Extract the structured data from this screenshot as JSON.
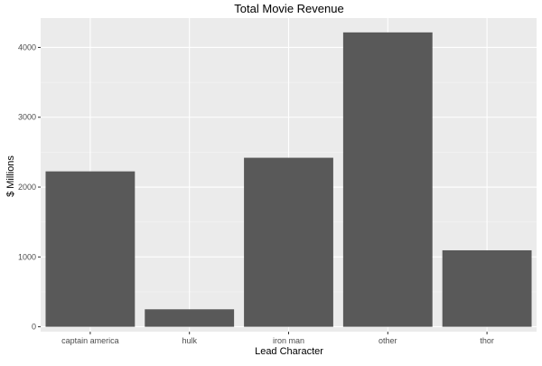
{
  "chart_data": {
    "type": "bar",
    "title": "Total Movie Revenue",
    "xlabel": "Lead Character",
    "ylabel": "$ Millions",
    "categories": [
      "captain america",
      "hulk",
      "iron man",
      "other",
      "thor"
    ],
    "values": [
      2225,
      250,
      2420,
      4215,
      1095
    ],
    "ylim": [
      -70,
      4420
    ],
    "yticks": [
      0,
      1000,
      2000,
      3000,
      4000
    ],
    "ytick_labels": [
      "0",
      "1000",
      "2000",
      "3000",
      "4000"
    ],
    "grid": true,
    "legend": "none",
    "colors": {
      "panel_background": "#ebebeb",
      "grid_major": "#ffffff",
      "bar_fill": "#595959",
      "tick_label": "#4d4d4d",
      "tick_mark": "#333333"
    }
  }
}
